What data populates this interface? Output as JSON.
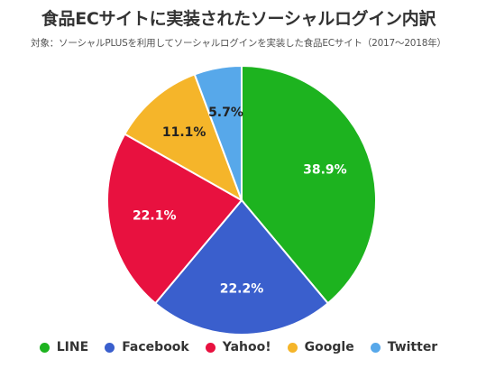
{
  "chart_data": {
    "type": "pie",
    "title": "食品ECサイトに実装されたソーシャルログイン内訳",
    "subtitle": "対象：ソーシャルPLUSを利用してソーシャルログインを実装した食品ECサイト（2017〜2018年）",
    "categories": [
      "LINE",
      "Facebook",
      "Yahoo!",
      "Google",
      "Twitter"
    ],
    "values": [
      38.9,
      22.2,
      22.1,
      11.1,
      5.7
    ],
    "data_labels": [
      "38.9%",
      "22.2%",
      "22.1%",
      "11.1%",
      "5.7%"
    ],
    "colors": [
      "#1db31f",
      "#3a5fcd",
      "#e8113f",
      "#f5b52a",
      "#57a8ea"
    ],
    "label_colors": [
      "#ffffff",
      "#ffffff",
      "#ffffff",
      "#222222",
      "#222222"
    ],
    "legend_position": "bottom",
    "start_angle": "12 o'clock",
    "direction": "clockwise"
  }
}
